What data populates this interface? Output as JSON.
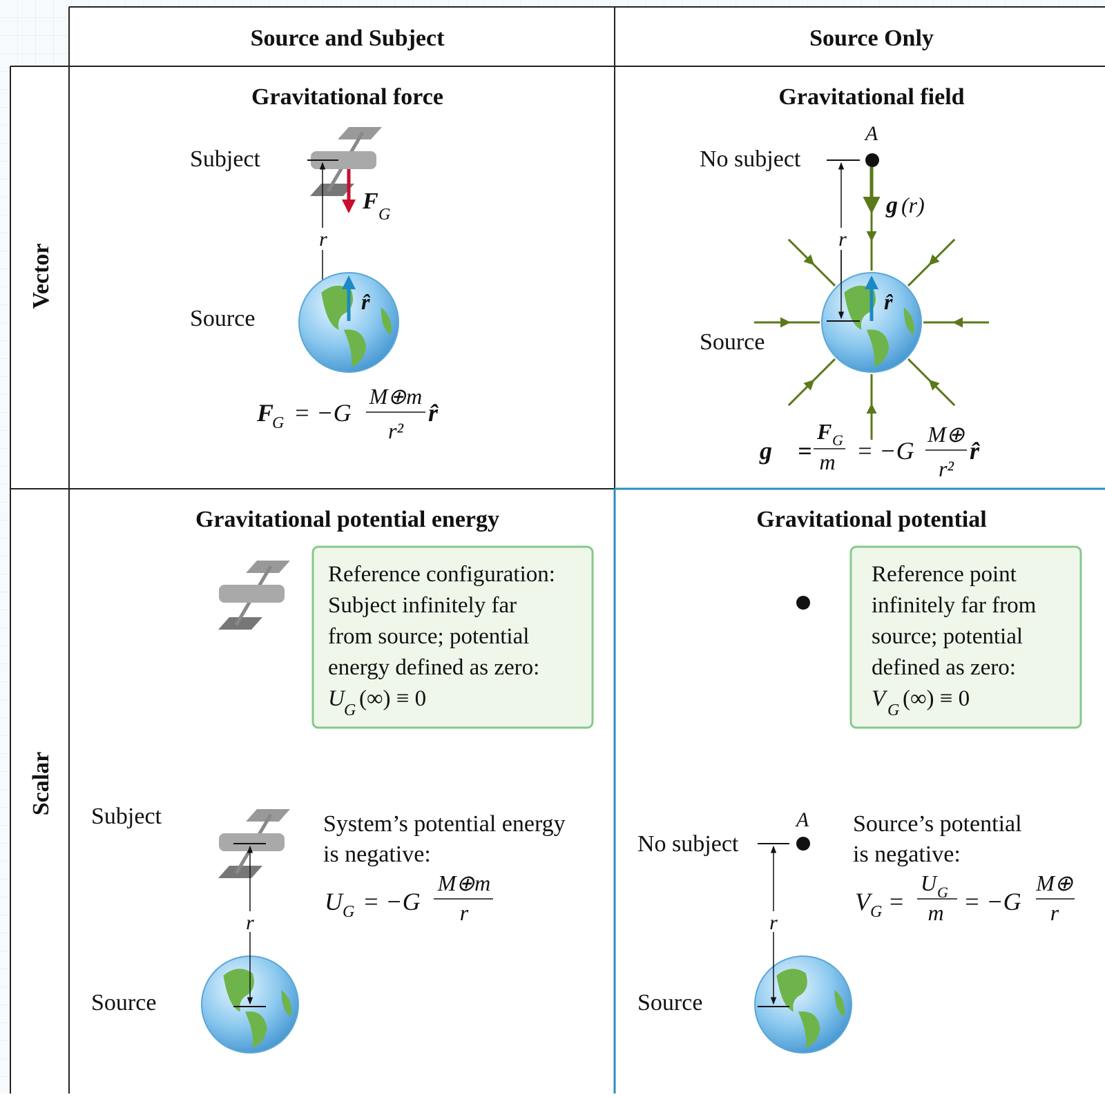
{
  "header": {
    "columns": [
      "Source and Subject",
      "Source Only"
    ]
  },
  "rows": [
    "Vector",
    "Scalar"
  ],
  "force": {
    "title": "Gravitational force",
    "subject": "Subject",
    "source": "Source",
    "r": "r",
    "vector": "F⃗",
    "vector_sub": "G",
    "unit": "r̂",
    "formula": {
      "lhs": "F⃗",
      "lhs_sub": "G",
      "eq": "= −G",
      "num": "M⊕m",
      "den": "r²",
      "unit": "r̂"
    }
  },
  "field": {
    "title": "Gravitational field",
    "point": "A",
    "no_subject": "No subject",
    "source": "Source",
    "r": "r",
    "vector": "g⃗",
    "vector_arg": "(r)",
    "unit": "r̂",
    "formula": {
      "lhs": "g⃗ =",
      "num1": "F⃗",
      "num1_sub": "G",
      "den1": "m",
      "eq": "= −G",
      "num2": "M⊕",
      "den2": "r²",
      "unit": "r̂"
    }
  },
  "energy": {
    "title": "Gravitational potential energy",
    "reference": [
      "Reference configuration:",
      "Subject infinitely far",
      "from source; potential",
      "energy defined as zero:"
    ],
    "reference_formula": {
      "sym": "U",
      "sub": "G",
      "rest": "(∞) ≡ 0"
    },
    "subject": "Subject",
    "source": "Source",
    "r": "r",
    "statement": [
      "System’s potential energy",
      "is negative:"
    ],
    "formula": {
      "lhs": "U",
      "lhs_sub": "G",
      "eq": "= −G",
      "num": "M⊕m",
      "den": "r"
    }
  },
  "potential": {
    "title": "Gravitational potential",
    "reference": [
      "Reference point",
      "infinitely far from",
      "source; potential",
      "defined as zero:"
    ],
    "reference_formula": {
      "sym": "V",
      "sub": "G",
      "rest": "(∞) ≡ 0"
    },
    "point": "A",
    "no_subject": "No subject",
    "source": "Source",
    "r": "r",
    "statement": [
      "Source’s potential",
      "is negative:"
    ],
    "formula": {
      "lhs": "V",
      "lhs_sub": "G",
      "eq1": "=",
      "num1": "U",
      "num1_sub": "G",
      "den1": "m",
      "eq2": "= −G",
      "num2": "M⊕",
      "den2": "r"
    }
  }
}
